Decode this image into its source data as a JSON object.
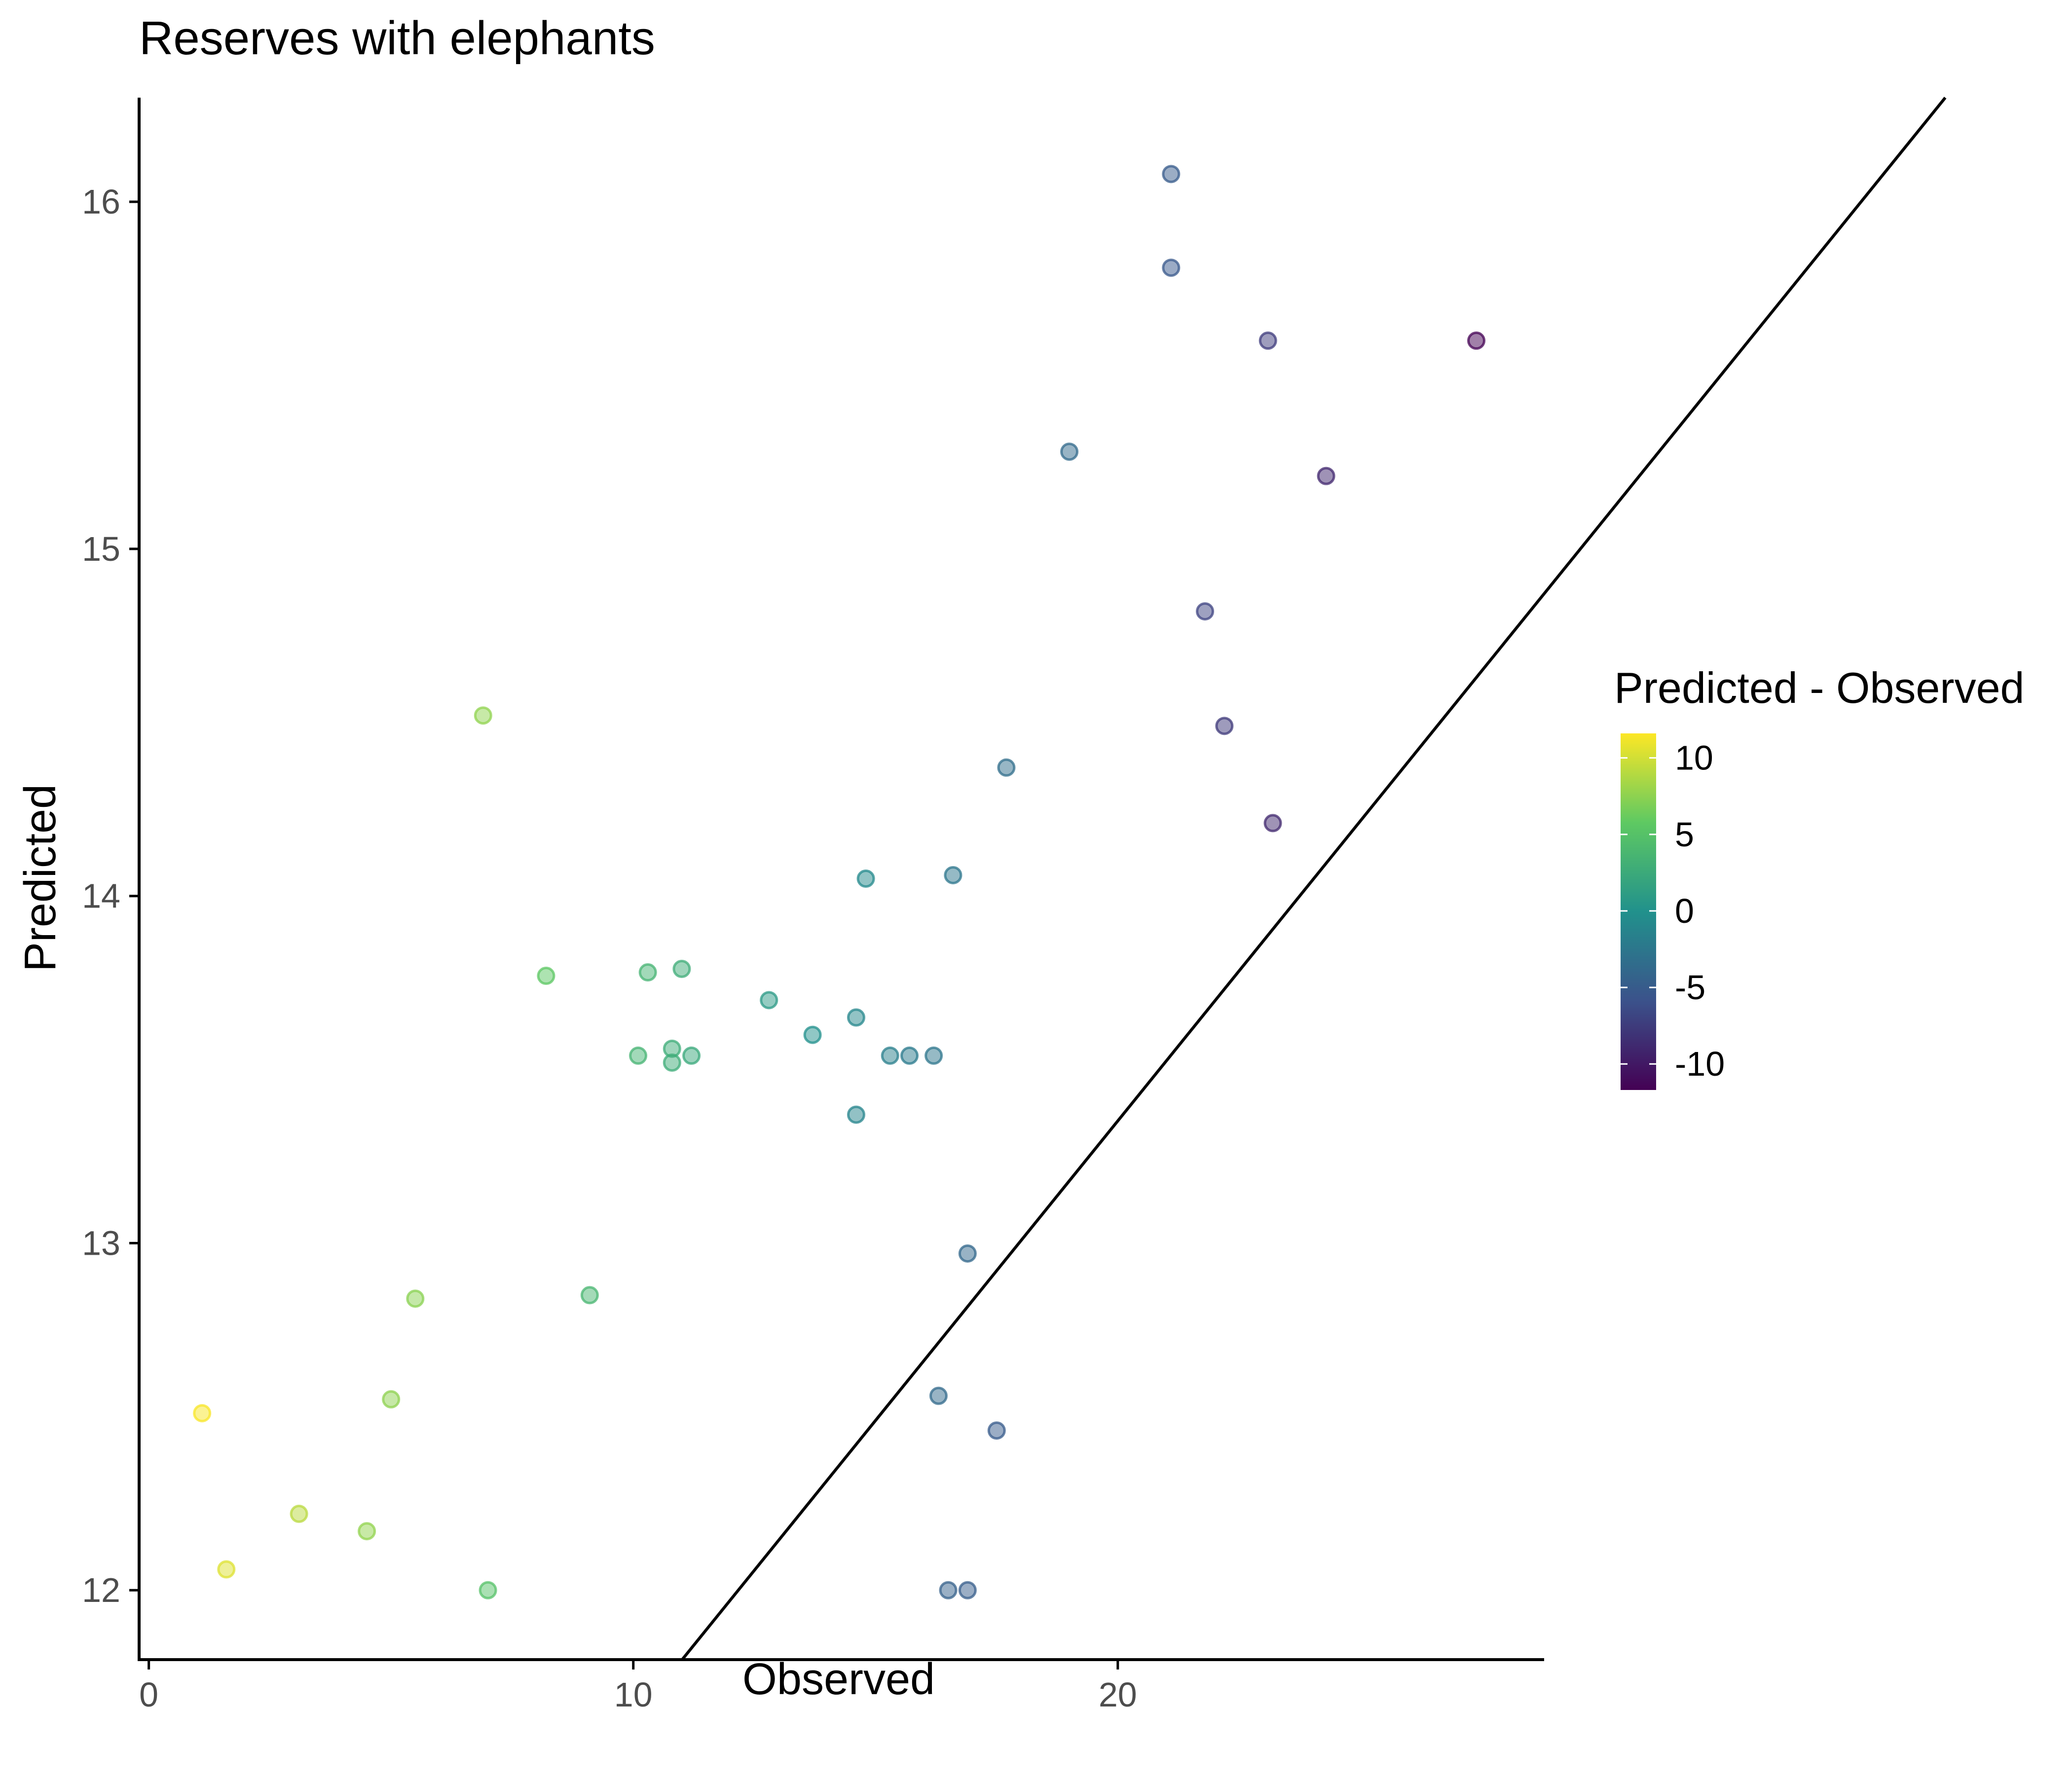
{
  "chart_data": {
    "type": "scatter",
    "title": "Reserves with elephants",
    "xlabel": "Observed",
    "ylabel": "Predicted",
    "xlim": [
      -0.2,
      28.8
    ],
    "ylim": [
      11.8,
      16.3
    ],
    "x_ticks": [
      0,
      10,
      20
    ],
    "y_ticks": [
      12,
      13,
      14,
      15,
      16
    ],
    "grid": false,
    "reference_line": {
      "intercept": 9.9,
      "slope": 0.1726
    },
    "colorbar": {
      "title": "Predicted - Observed",
      "ticks": [
        10,
        5,
        0,
        -5,
        -10
      ],
      "range": [
        -11.7,
        11.6
      ],
      "colors": [
        "#440154",
        "#3b528b",
        "#21918c",
        "#5ec962",
        "#fde725"
      ],
      "position": "right"
    },
    "points": [
      {
        "x": 1.1,
        "y": 12.51
      },
      {
        "x": 1.6,
        "y": 12.06
      },
      {
        "x": 3.1,
        "y": 12.22
      },
      {
        "x": 4.5,
        "y": 12.17
      },
      {
        "x": 5.0,
        "y": 12.55
      },
      {
        "x": 5.5,
        "y": 12.84
      },
      {
        "x": 6.9,
        "y": 14.52
      },
      {
        "x": 7.0,
        "y": 12.0
      },
      {
        "x": 8.2,
        "y": 13.77
      },
      {
        "x": 9.1,
        "y": 12.85
      },
      {
        "x": 10.1,
        "y": 13.54
      },
      {
        "x": 10.3,
        "y": 13.78
      },
      {
        "x": 10.8,
        "y": 13.56
      },
      {
        "x": 10.8,
        "y": 13.52
      },
      {
        "x": 11.0,
        "y": 13.79
      },
      {
        "x": 11.2,
        "y": 13.54
      },
      {
        "x": 12.8,
        "y": 13.7
      },
      {
        "x": 13.7,
        "y": 13.6
      },
      {
        "x": 14.6,
        "y": 13.65
      },
      {
        "x": 14.6,
        "y": 13.37
      },
      {
        "x": 14.8,
        "y": 14.05
      },
      {
        "x": 15.3,
        "y": 13.54
      },
      {
        "x": 15.7,
        "y": 13.54
      },
      {
        "x": 16.2,
        "y": 13.54
      },
      {
        "x": 16.3,
        "y": 12.56
      },
      {
        "x": 16.5,
        "y": 12.0
      },
      {
        "x": 16.6,
        "y": 14.06
      },
      {
        "x": 16.9,
        "y": 12.97
      },
      {
        "x": 16.9,
        "y": 12.0
      },
      {
        "x": 17.5,
        "y": 12.46
      },
      {
        "x": 17.7,
        "y": 14.37
      },
      {
        "x": 19.0,
        "y": 15.28
      },
      {
        "x": 21.1,
        "y": 16.08
      },
      {
        "x": 21.1,
        "y": 15.81
      },
      {
        "x": 21.8,
        "y": 14.82
      },
      {
        "x": 22.2,
        "y": 14.49
      },
      {
        "x": 23.1,
        "y": 15.6
      },
      {
        "x": 23.2,
        "y": 14.21
      },
      {
        "x": 24.3,
        "y": 15.21
      },
      {
        "x": 27.4,
        "y": 15.6
      }
    ]
  }
}
